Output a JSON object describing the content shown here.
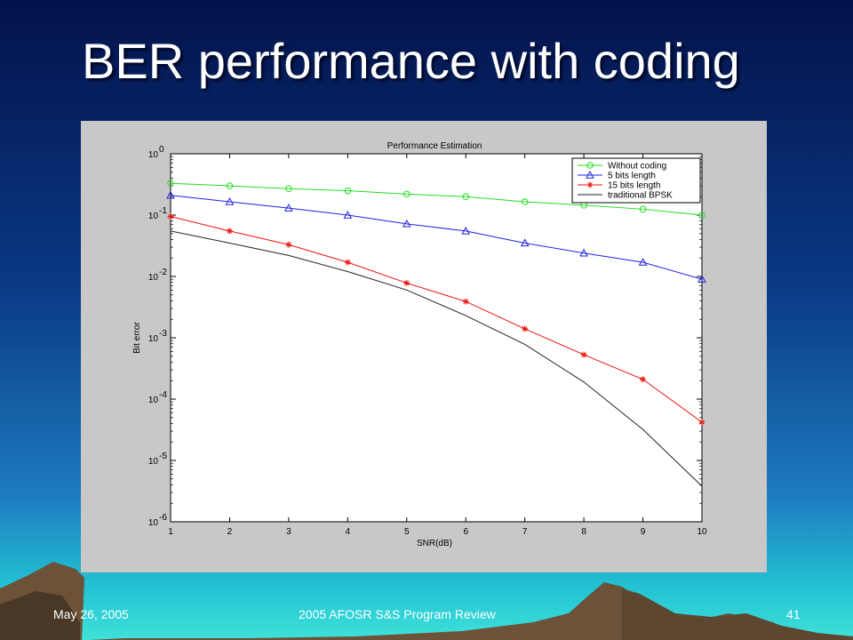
{
  "slide": {
    "title": "BER performance with coding",
    "footer_date": "May 26, 2005",
    "footer_event": "2005 AFOSR S&S Program Review",
    "page_number": "41"
  },
  "colors": {
    "sky_top": "#03124a",
    "sky_mid": "#0a3a86",
    "sky_low": "#1e90c8",
    "horizon": "#22d0d6",
    "mountain": "#6b5238",
    "figure_bg": "#c8c8c8",
    "plot_bg": "#ffffff"
  },
  "chart_data": {
    "type": "line",
    "title": "Performance Estimation",
    "xlabel": "SNR(dB)",
    "ylabel": "Bit error",
    "x": [
      1,
      2,
      3,
      4,
      5,
      6,
      7,
      8,
      9,
      10
    ],
    "xlim": [
      1,
      10
    ],
    "ylim": [
      1e-06,
      1
    ],
    "yscale": "log",
    "x_ticks": [
      "1",
      "2",
      "3",
      "4",
      "5",
      "6",
      "7",
      "8",
      "9",
      "10"
    ],
    "y_ticks": [
      {
        "base": "10",
        "exp": "0"
      },
      {
        "base": "10",
        "exp": "-1"
      },
      {
        "base": "10",
        "exp": "-2"
      },
      {
        "base": "10",
        "exp": "-3"
      },
      {
        "base": "10",
        "exp": "-4"
      },
      {
        "base": "10",
        "exp": "-5"
      },
      {
        "base": "10",
        "exp": "-6"
      }
    ],
    "grid": false,
    "legend_position": "top-right",
    "series": [
      {
        "name": "Without coding",
        "color": "#22dd22",
        "marker": "circle",
        "values": [
          0.33,
          0.3,
          0.27,
          0.25,
          0.22,
          0.2,
          0.165,
          0.145,
          0.125,
          0.1
        ]
      },
      {
        "name": "5 bits length",
        "color": "#2020e0",
        "marker": "triangle",
        "values": [
          0.21,
          0.165,
          0.13,
          0.1,
          0.072,
          0.055,
          0.035,
          0.024,
          0.017,
          0.009
        ]
      },
      {
        "name": "15 bits length",
        "color": "#ee1111",
        "marker": "star",
        "values": [
          0.095,
          0.055,
          0.033,
          0.017,
          0.0078,
          0.0039,
          0.0014,
          0.00053,
          0.00021,
          4.2e-05
        ]
      },
      {
        "name": "traditional BPSK",
        "color": "#222222",
        "marker": "none",
        "values": [
          0.055,
          0.035,
          0.022,
          0.012,
          0.006,
          0.0023,
          0.00078,
          0.00019,
          3.2e-05,
          3.8e-06
        ]
      }
    ]
  }
}
